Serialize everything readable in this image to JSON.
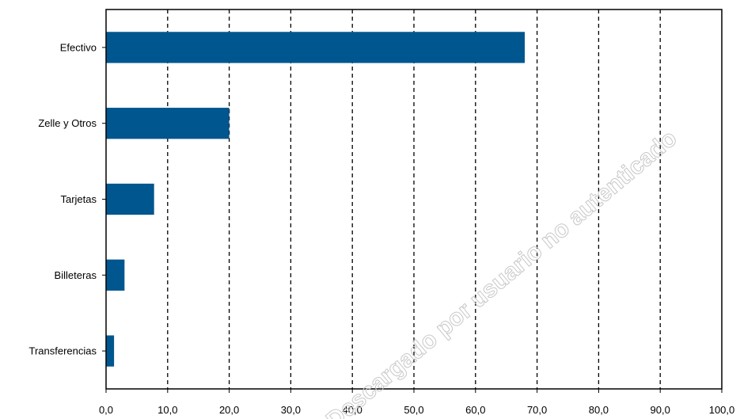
{
  "chart_data": {
    "type": "bar",
    "orientation": "horizontal",
    "categories": [
      "Efectivo",
      "Zelle y Otros",
      "Tarjetas",
      "Billeteras",
      "Transferencias"
    ],
    "values": [
      68.0,
      20.0,
      7.8,
      3.0,
      1.3
    ],
    "xlim": [
      0,
      100
    ],
    "x_ticks": [
      "0,0",
      "10,0",
      "20,0",
      "30,0",
      "40,0",
      "50,0",
      "60,0",
      "70,0",
      "80,0",
      "90,0",
      "100,0"
    ],
    "title": "",
    "xlabel": "",
    "ylabel": "",
    "grid": "vertical dashed",
    "legend": "none",
    "bar_color": "#00568f"
  },
  "watermark": {
    "text": "Descargado por usuario no autenticado"
  }
}
